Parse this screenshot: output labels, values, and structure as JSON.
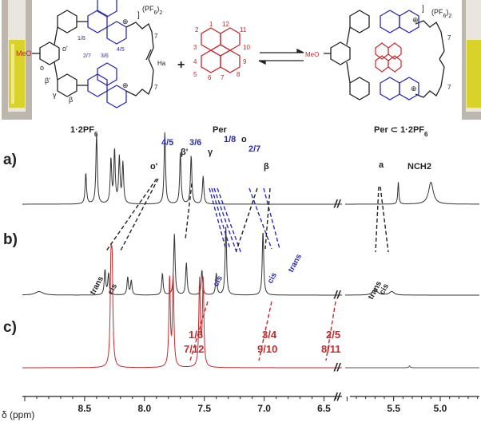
{
  "scheme": {
    "host_label": "1·2PF",
    "host_label_sub": "6",
    "host_counterion": "(PF",
    "host_counterion_sub": "6",
    "host_counterion_end": ")",
    "host_counterion_sub2": "2",
    "guest_label": "Per",
    "complex_label": "Per ⊂ 1·2PF",
    "complex_label_sub": "6",
    "complex_counterion": "(PF",
    "complex_counterion_sub": "6",
    "complex_counterion_end": ")",
    "complex_counterion_sub2": "2",
    "plus": "+",
    "meo": "MeO",
    "o_label": "o",
    "o_prime": "o'",
    "beta_prime": "β'",
    "gamma": "γ",
    "beta": "β",
    "ha": "Ha",
    "n_plus": "⊕",
    "seven": "7",
    "host_num_1_8": "1/8",
    "host_num_2_7": "2/7",
    "host_num_3_6": "3/6",
    "host_num_4_5": "4/5",
    "per_nums": [
      "1",
      "2",
      "3",
      "4",
      "5",
      "6",
      "7",
      "8",
      "9",
      "10",
      "11",
      "12"
    ]
  },
  "chart_data": {
    "type": "line",
    "xlabel": "δ (ppm)",
    "x_ticks": [
      "8.5",
      "8.0",
      "7.5",
      "7.0",
      "6.5",
      "5.5",
      "5.0"
    ],
    "break_mark": "//",
    "panels": [
      {
        "label": "a)",
        "peaks": [
          {
            "ppm": 8.49,
            "height": 0.42
          },
          {
            "ppm": 8.4,
            "height": 0.95
          },
          {
            "ppm": 8.28,
            "height": 0.6
          },
          {
            "ppm": 8.25,
            "height": 0.72
          },
          {
            "ppm": 8.21,
            "height": 0.62
          },
          {
            "ppm": 8.18,
            "height": 0.55
          },
          {
            "ppm": 7.83,
            "height": 0.98
          },
          {
            "ppm": 7.7,
            "height": 0.7
          },
          {
            "ppm": 7.61,
            "height": 0.66
          },
          {
            "ppm": 7.51,
            "height": 0.38
          },
          {
            "ppm": 5.45,
            "height": 0.3
          },
          {
            "ppm": 5.1,
            "height": 0.3,
            "width": 0.03
          }
        ],
        "annotations_blue": [
          "4/5",
          "3/6",
          "1/8",
          "2/7"
        ],
        "annotations_black": [
          "o'",
          "β'",
          "γ",
          "o",
          "β",
          "a",
          "NCH2"
        ]
      },
      {
        "label": "b)",
        "peaks": [
          {
            "ppm": 8.88,
            "height": 0.05,
            "width": 0.04
          },
          {
            "ppm": 8.33,
            "height": 0.35
          },
          {
            "ppm": 8.3,
            "height": 0.3
          },
          {
            "ppm": 8.14,
            "height": 0.25
          },
          {
            "ppm": 8.11,
            "height": 0.2
          },
          {
            "ppm": 7.85,
            "height": 0.3
          },
          {
            "ppm": 7.75,
            "height": 0.85
          },
          {
            "ppm": 7.65,
            "height": 0.45
          },
          {
            "ppm": 7.52,
            "height": 0.35
          },
          {
            "ppm": 7.4,
            "height": 0.3
          },
          {
            "ppm": 7.32,
            "height": 0.95
          },
          {
            "ppm": 7.01,
            "height": 0.9
          },
          {
            "ppm": 5.7,
            "height": 0.08,
            "width": 0.03
          },
          {
            "ppm": 5.52,
            "height": 0.05,
            "width": 0.03
          }
        ],
        "annotations_black": [
          "trans",
          "cis"
        ],
        "annotations_blue": [
          "cis",
          "trans"
        ]
      },
      {
        "label": "c)",
        "peaks": [
          {
            "ppm": 8.28,
            "height": 0.98
          },
          {
            "ppm": 8.27,
            "height": 0.95
          },
          {
            "ppm": 7.79,
            "height": 0.95
          },
          {
            "ppm": 7.76,
            "height": 0.95
          },
          {
            "ppm": 7.54,
            "height": 0.92
          },
          {
            "ppm": 7.51,
            "height": 0.92
          },
          {
            "ppm": 5.33,
            "height": 0.02
          }
        ],
        "annotations_red": [
          "1/6",
          "7/12",
          "3/4",
          "9/10",
          "2/5",
          "8/11"
        ]
      }
    ]
  },
  "colors": {
    "blue": "#2a2ab8",
    "red": "#c8282a",
    "black": "#222222",
    "vial_yellow": "#d9d22a"
  }
}
